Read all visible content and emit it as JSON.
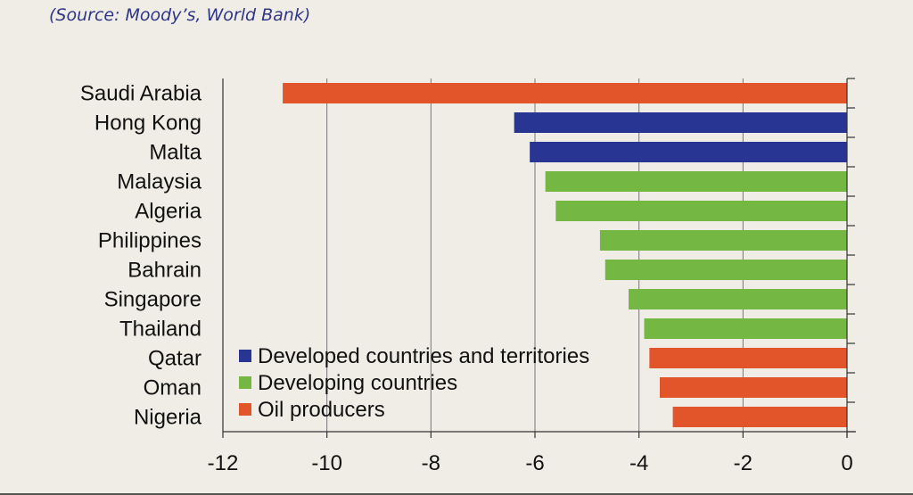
{
  "source": "(Source: Moody’s, World Bank)",
  "colors": {
    "developed": "#283593",
    "developing": "#74b843",
    "oil": "#e2552b",
    "grid": "#777777",
    "axis": "#333333"
  },
  "chart_data": {
    "type": "bar",
    "orientation": "horizontal",
    "title": "",
    "xlabel": "",
    "ylabel": "",
    "xlim": [
      -12,
      0
    ],
    "xticks": [
      -12,
      -10,
      -8,
      -6,
      -4,
      -2,
      0
    ],
    "grid": "vertical",
    "legend_position": "bottom-left",
    "categories": [
      "Saudi Arabia",
      "Hong Kong",
      "Malta",
      "Malaysia",
      "Algeria",
      "Philippines",
      "Bahrain",
      "Singapore",
      "Thailand",
      "Qatar",
      "Oman",
      "Nigeria"
    ],
    "values": [
      -10.85,
      -6.4,
      -6.1,
      -5.8,
      -5.6,
      -4.75,
      -4.65,
      -4.2,
      -3.9,
      -3.8,
      -3.6,
      -3.35
    ],
    "groups": [
      "oil",
      "developed",
      "developed",
      "developing",
      "developing",
      "developing",
      "developing",
      "developing",
      "developing",
      "oil",
      "oil",
      "oil"
    ],
    "series": [
      {
        "key": "developed",
        "name": "Developed countries and territories"
      },
      {
        "key": "developing",
        "name": "Developing countries"
      },
      {
        "key": "oil",
        "name": "Oil producers"
      }
    ]
  }
}
